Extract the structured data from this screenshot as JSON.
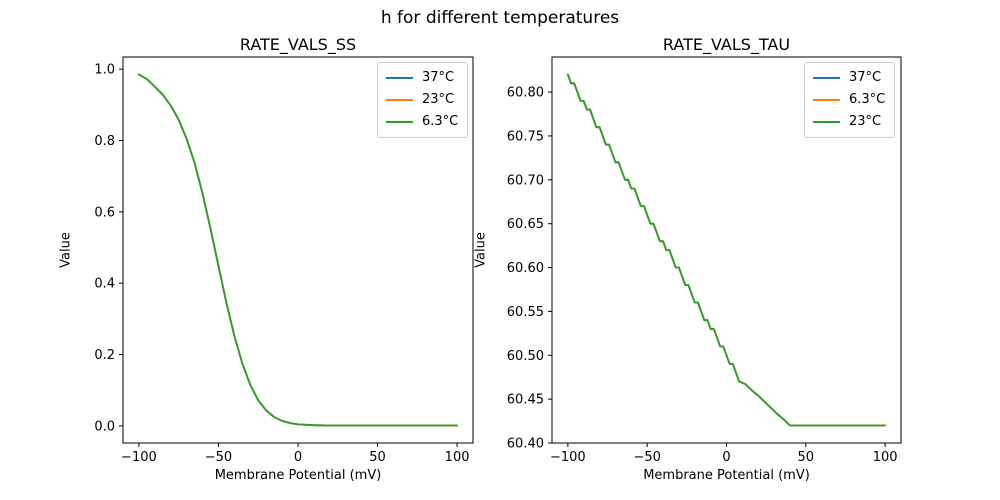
{
  "figure": {
    "title": "h for different temperatures",
    "background": "#ffffff",
    "note": "matplotlib figure with two line subplots; in both subplots the three temperature curves overlap exactly, so only the last-drawn green curve is visible"
  },
  "colors": {
    "blue": "#1f77b4",
    "orange": "#ff7f0e",
    "green": "#2ca02c",
    "spine": "#000000",
    "legend_border": "#cccccc"
  },
  "chart_data": [
    {
      "type": "line",
      "title": "RATE_VALS_SS",
      "xlabel": "Membrane Potential (mV)",
      "ylabel": "Value",
      "grid": false,
      "legend_position": "upper right",
      "xlim": [
        -110,
        110
      ],
      "ylim": [
        -0.048,
        1.034
      ],
      "xticks": [
        -100,
        -50,
        0,
        50,
        100
      ],
      "xtick_labels": [
        "−100",
        "−50",
        "0",
        "50",
        "100"
      ],
      "yticks": [
        0.0,
        0.2,
        0.4,
        0.6,
        0.8,
        1.0
      ],
      "ytick_labels": [
        "0.0",
        "0.2",
        "0.4",
        "0.6",
        "0.8",
        "1.0"
      ],
      "x": [
        -100,
        -95,
        -90,
        -85,
        -80,
        -75,
        -70,
        -65,
        -60,
        -55,
        -50,
        -45,
        -40,
        -35,
        -30,
        -25,
        -20,
        -15,
        -10,
        -5,
        0,
        10,
        20,
        30,
        40,
        50,
        60,
        70,
        80,
        90,
        100
      ],
      "values": [
        0.985,
        0.972,
        0.951,
        0.928,
        0.898,
        0.858,
        0.805,
        0.737,
        0.652,
        0.553,
        0.448,
        0.345,
        0.252,
        0.175,
        0.115,
        0.072,
        0.043,
        0.025,
        0.014,
        0.008,
        0.004,
        0.002,
        0.001,
        0.001,
        0.001,
        0.001,
        0.001,
        0.001,
        0.001,
        0.001,
        0.001
      ],
      "series_overlap": true,
      "series": [
        {
          "name": "37°C",
          "color": "#1f77b4"
        },
        {
          "name": "23°C",
          "color": "#ff7f0e"
        },
        {
          "name": "6.3°C",
          "color": "#2ca02c"
        }
      ]
    },
    {
      "type": "line",
      "title": "RATE_VALS_TAU",
      "xlabel": "Membrane Potential (mV)",
      "ylabel": "Value",
      "grid": false,
      "legend_position": "upper right",
      "xlim": [
        -110,
        110
      ],
      "ylim": [
        60.4,
        60.84
      ],
      "xticks": [
        -100,
        -50,
        0,
        50,
        100
      ],
      "xtick_labels": [
        "−100",
        "−50",
        "0",
        "50",
        "100"
      ],
      "yticks": [
        60.4,
        60.45,
        60.5,
        60.55,
        60.6,
        60.65,
        60.7,
        60.75,
        60.8
      ],
      "ytick_labels": [
        "60.40",
        "60.45",
        "60.50",
        "60.55",
        "60.60",
        "60.65",
        "60.70",
        "60.75",
        "60.80"
      ],
      "x": [
        -100,
        -98,
        -96,
        -94,
        -92,
        -90,
        -88,
        -86,
        -84,
        -82,
        -80,
        -78,
        -76,
        -74,
        -72,
        -70,
        -68,
        -66,
        -64,
        -62,
        -60,
        -58,
        -56,
        -54,
        -52,
        -50,
        -48,
        -46,
        -44,
        -42,
        -40,
        -38,
        -36,
        -34,
        -32,
        -30,
        -28,
        -26,
        -24,
        -22,
        -20,
        -18,
        -16,
        -14,
        -12,
        -10,
        -8,
        -6,
        -4,
        -2,
        0,
        2,
        4,
        6,
        8,
        12,
        16,
        20,
        24,
        28,
        32,
        36,
        40,
        50,
        60,
        70,
        80,
        90,
        100
      ],
      "values": [
        60.82,
        60.81,
        60.81,
        60.8,
        60.79,
        60.79,
        60.78,
        60.78,
        60.77,
        60.76,
        60.76,
        60.75,
        60.74,
        60.74,
        60.73,
        60.72,
        60.72,
        60.71,
        60.7,
        60.7,
        60.69,
        60.69,
        60.68,
        60.67,
        60.67,
        60.66,
        60.65,
        60.65,
        60.64,
        60.63,
        60.63,
        60.62,
        60.62,
        60.61,
        60.6,
        60.6,
        60.59,
        60.58,
        60.58,
        60.57,
        60.56,
        60.56,
        60.55,
        60.54,
        60.54,
        60.53,
        60.53,
        60.52,
        60.51,
        60.51,
        60.5,
        60.49,
        60.49,
        60.48,
        60.47,
        60.467,
        60.46,
        60.454,
        60.447,
        60.44,
        60.433,
        60.427,
        60.42,
        60.42,
        60.42,
        60.42,
        60.42,
        60.42,
        60.42
      ],
      "series_overlap": true,
      "series": [
        {
          "name": "37°C",
          "color": "#1f77b4"
        },
        {
          "name": "6.3°C",
          "color": "#ff7f0e"
        },
        {
          "name": "23°C",
          "color": "#2ca02c"
        }
      ]
    }
  ]
}
